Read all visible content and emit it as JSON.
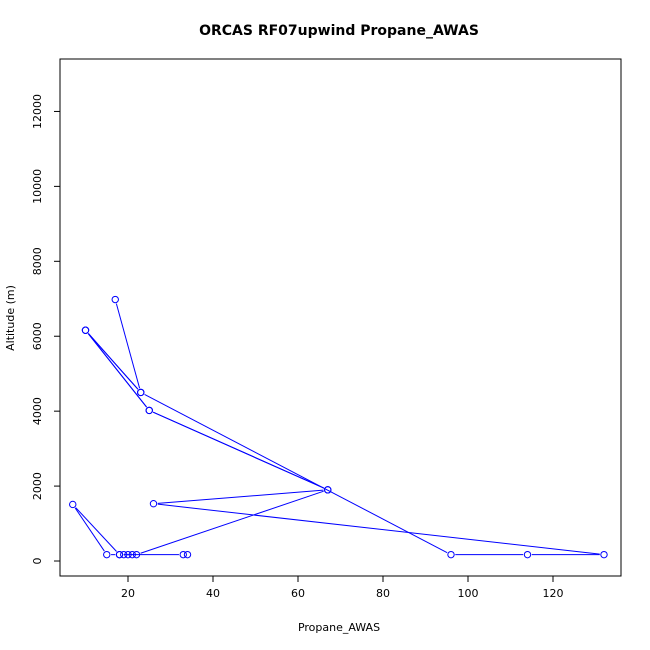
{
  "chart_data": {
    "type": "line",
    "title": "ORCAS RF07upwind Propane_AWAS",
    "xlabel": "Propane_AWAS",
    "ylabel": "Altitude (m)",
    "xlim": [
      4,
      136
    ],
    "ylim": [
      -400,
      13400
    ],
    "xticks": [
      20,
      40,
      60,
      80,
      100,
      120
    ],
    "yticks": [
      0,
      2000,
      4000,
      6000,
      8000,
      10000,
      12000
    ],
    "marker": "open-circle",
    "color": "#0000ff",
    "grid": false,
    "series": [
      {
        "x": [
          17,
          23,
          10,
          25,
          67,
          26,
          132,
          114,
          96,
          23,
          10,
          25,
          67,
          22,
          21,
          20,
          19,
          18,
          7,
          15,
          18,
          33,
          34
        ],
        "y": [
          6980,
          4500,
          6160,
          4020,
          1900,
          1530,
          170,
          170,
          170,
          4500,
          6160,
          4020,
          1900,
          170,
          170,
          170,
          170,
          170,
          1510,
          170,
          170,
          170,
          170
        ]
      }
    ]
  }
}
